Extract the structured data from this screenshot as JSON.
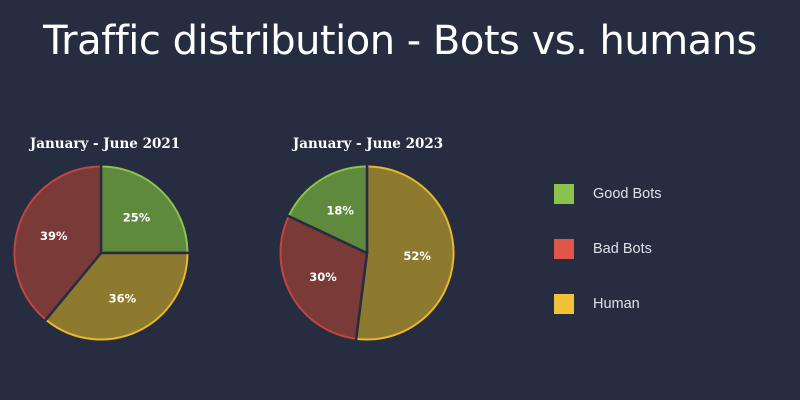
{
  "title": "Traffic distribution - Bots vs. humans",
  "legend": [
    {
      "label": "Good Bots",
      "color": "#8bc34a"
    },
    {
      "label": "Bad Bots",
      "color": "#e2574c"
    },
    {
      "label": "Human",
      "color": "#f0c23a"
    }
  ],
  "chart_data": [
    {
      "type": "pie",
      "title": "January - June 2021",
      "slices": [
        {
          "name": "Good Bots",
          "value": 25,
          "label": "25%",
          "fill": "#5f8a3e",
          "edge": "#8bc34a"
        },
        {
          "name": "Human",
          "value": 36,
          "label": "36%",
          "fill": "#8e7a2f",
          "edge": "#e8b82e"
        },
        {
          "name": "Bad Bots",
          "value": 39,
          "label": "39%",
          "fill": "#7a3a37",
          "edge": "#c1463f"
        }
      ]
    },
    {
      "type": "pie",
      "title": "January - June 2023",
      "slices": [
        {
          "name": "Human",
          "value": 52,
          "label": "52%",
          "fill": "#8e7a2f",
          "edge": "#e8b82e"
        },
        {
          "name": "Bad Bots",
          "value": 30,
          "label": "30%",
          "fill": "#7a3a37",
          "edge": "#c1463f"
        },
        {
          "name": "Good Bots",
          "value": 18,
          "label": "18%",
          "fill": "#5f8a3e",
          "edge": "#8bc34a"
        }
      ]
    }
  ]
}
